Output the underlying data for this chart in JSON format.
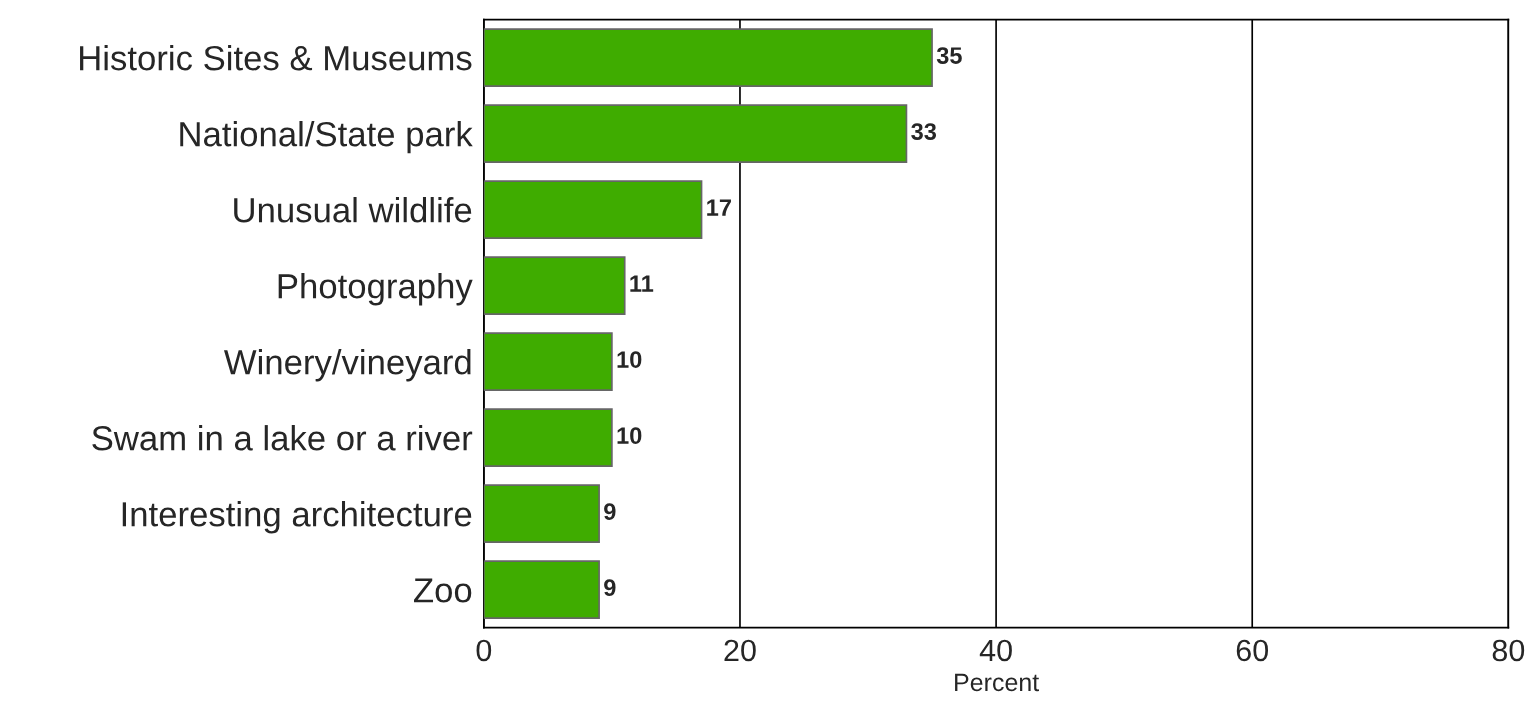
{
  "chart_data": {
    "type": "bar",
    "orientation": "horizontal",
    "xlabel": "Percent",
    "categories": [
      "Historic Sites & Museums",
      "National/State park",
      "Unusual wildlife",
      "Photography",
      "Winery/vineyard",
      "Swam in a lake or a river",
      "Interesting architecture",
      "Zoo"
    ],
    "values": [
      35,
      33,
      17,
      11,
      10,
      10,
      9,
      9
    ],
    "color": "#3fac00",
    "xlim": [
      0,
      80
    ],
    "xticks": [
      0,
      20,
      40,
      60,
      80
    ],
    "grid": "x",
    "data_labels": true
  }
}
